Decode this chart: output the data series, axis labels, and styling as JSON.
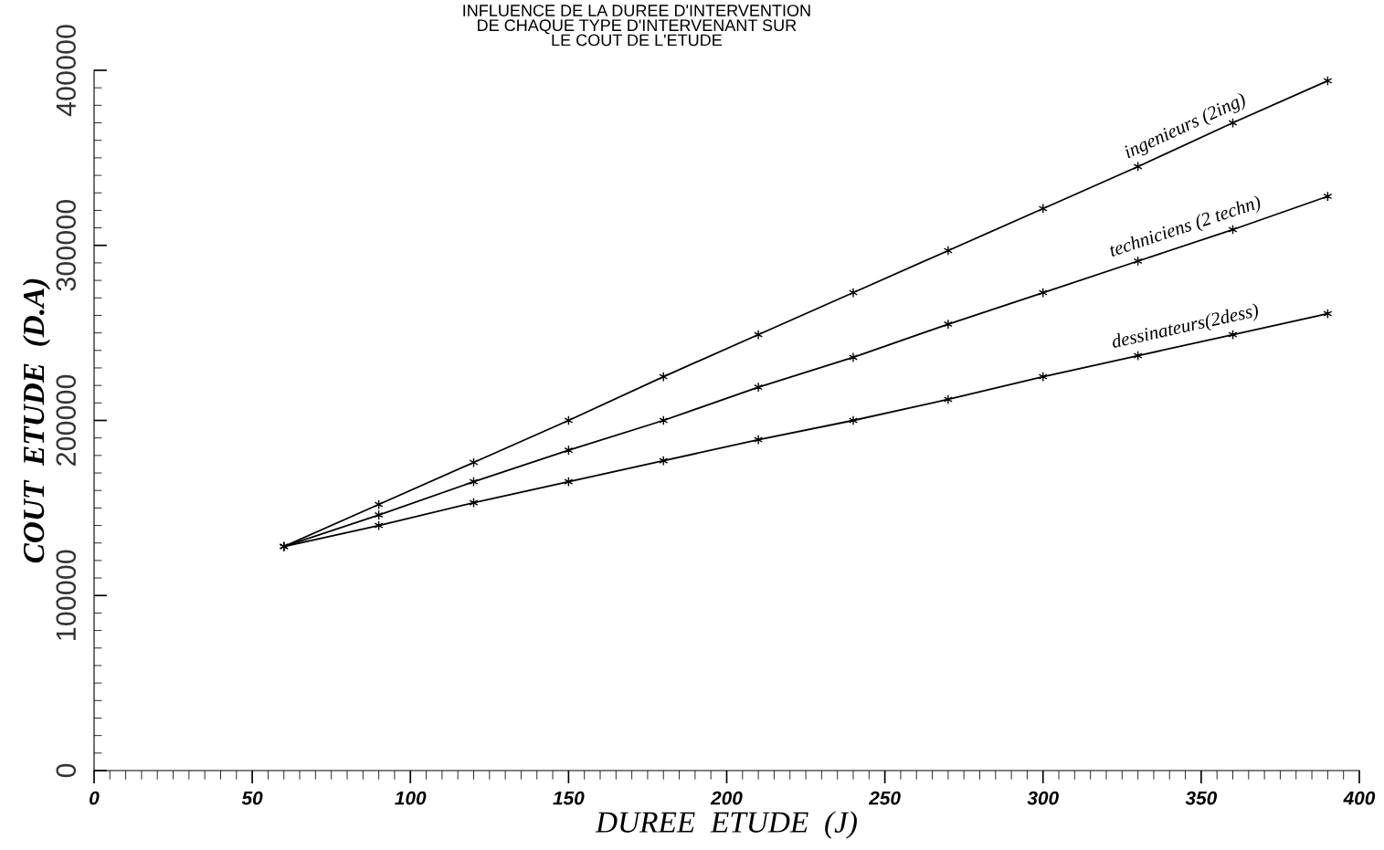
{
  "chart_data": {
    "type": "line",
    "title": "INFLUENCE DE LA DUREE D'INTERVENTION\nDE CHAQUE TYPE D'INTERVENANT SUR\nLE COUT DE L'ETUDE",
    "xlabel": "DUREE  ETUDE  (J)",
    "ylabel": "COUT  ETUDE  (D.A)",
    "x": [
      60,
      90,
      120,
      150,
      180,
      210,
      240,
      270,
      300,
      330,
      360,
      390
    ],
    "series": [
      {
        "name": "ingenieurs (2ing)",
        "color": "#000000",
        "values": [
          128000,
          152000,
          176000,
          200000,
          225000,
          249000,
          273000,
          297000,
          321000,
          345000,
          370000,
          394000
        ]
      },
      {
        "name": "techniciens (2 techn)",
        "color": "#000000",
        "values": [
          128000,
          146000,
          165000,
          183000,
          200000,
          219000,
          236000,
          255000,
          273000,
          291000,
          309000,
          328000
        ]
      },
      {
        "name": "dessinateurs(2dess)",
        "color": "#000000",
        "values": [
          128000,
          140000,
          153000,
          165000,
          177000,
          189000,
          200000,
          212000,
          225000,
          237000,
          249000,
          261000
        ]
      }
    ],
    "xlim": [
      0,
      400
    ],
    "xticks": [
      0,
      50,
      100,
      150,
      200,
      250,
      300,
      350,
      400
    ],
    "ylim": [
      0,
      400000
    ],
    "yticks": [
      0,
      100000,
      200000,
      300000,
      400000
    ],
    "grid": false,
    "legend": false,
    "marker": "cross",
    "line_style": "solid"
  }
}
